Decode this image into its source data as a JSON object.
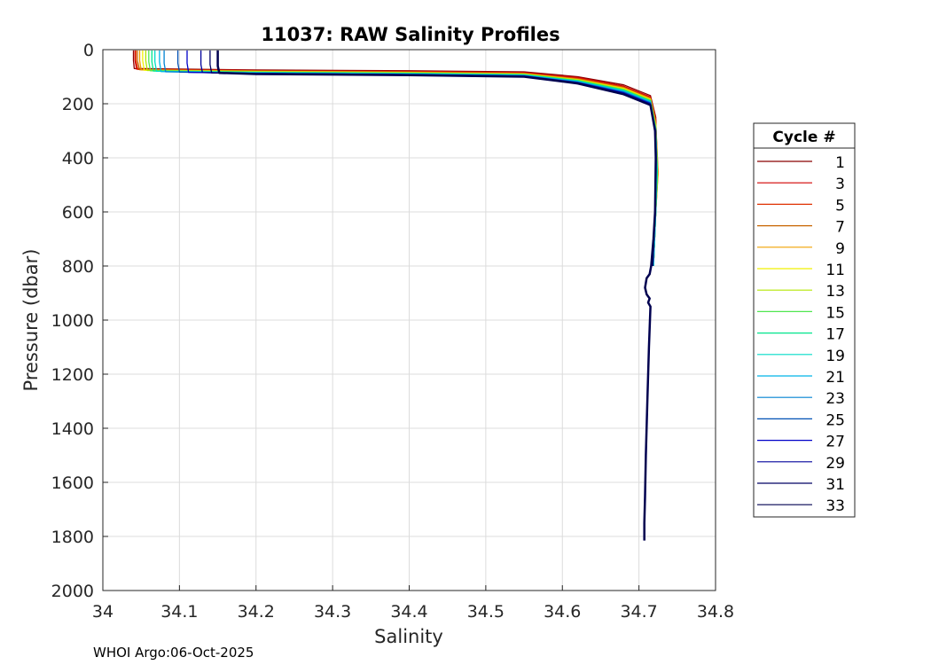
{
  "chart_data": {
    "type": "line",
    "title": "11037: RAW Salinity Profiles",
    "xlabel": "Salinity",
    "ylabel": "Pressure (dbar)",
    "xlim": [
      34,
      34.8
    ],
    "ylim": [
      0,
      2000
    ],
    "y_reversed": true,
    "xticks": [
      "34",
      "34.1",
      "34.2",
      "34.3",
      "34.4",
      "34.5",
      "34.6",
      "34.7",
      "34.8"
    ],
    "yticks": [
      "0",
      "200",
      "400",
      "600",
      "800",
      "1000",
      "1200",
      "1400",
      "1600",
      "1800",
      "2000"
    ],
    "grid": true,
    "legend": {
      "title": "Cycle #",
      "placement": "right",
      "entries": [
        {
          "label": "1",
          "color": "#8b0000"
        },
        {
          "label": "3",
          "color": "#d20000"
        },
        {
          "label": "5",
          "color": "#e03000"
        },
        {
          "label": "7",
          "color": "#c86400"
        },
        {
          "label": "9",
          "color": "#f0a000"
        },
        {
          "label": "11",
          "color": "#f0f000"
        },
        {
          "label": "13",
          "color": "#b4e600"
        },
        {
          "label": "15",
          "color": "#50e650"
        },
        {
          "label": "17",
          "color": "#00e68c"
        },
        {
          "label": "19",
          "color": "#00dcc8"
        },
        {
          "label": "21",
          "color": "#00b4e6"
        },
        {
          "label": "23",
          "color": "#0082d2"
        },
        {
          "label": "25",
          "color": "#0050b4"
        },
        {
          "label": "27",
          "color": "#0000c8"
        },
        {
          "label": "29",
          "color": "#00009b"
        },
        {
          "label": "31",
          "color": "#000064"
        },
        {
          "label": "33",
          "color": "#000050"
        }
      ]
    },
    "series": [
      {
        "name": "1",
        "color": "#8b0000",
        "profile": [
          [
            34.04,
            3
          ],
          [
            34.04,
            40
          ],
          [
            34.041,
            70
          ],
          [
            34.2,
            75
          ],
          [
            34.4,
            78
          ],
          [
            34.55,
            82
          ],
          [
            34.62,
            100
          ],
          [
            34.68,
            130
          ],
          [
            34.715,
            170
          ],
          [
            34.722,
            250
          ],
          [
            34.723,
            420
          ],
          [
            34.721,
            600
          ],
          [
            34.718,
            800
          ]
        ]
      },
      {
        "name": "3",
        "color": "#d20000",
        "profile": [
          [
            34.042,
            3
          ],
          [
            34.042,
            40
          ],
          [
            34.044,
            72
          ],
          [
            34.2,
            77
          ],
          [
            34.4,
            80
          ],
          [
            34.55,
            85
          ],
          [
            34.62,
            103
          ],
          [
            34.68,
            135
          ],
          [
            34.715,
            175
          ],
          [
            34.722,
            260
          ],
          [
            34.724,
            430
          ],
          [
            34.722,
            600
          ],
          [
            34.719,
            800
          ]
        ]
      },
      {
        "name": "5",
        "color": "#e03000",
        "profile": [
          [
            34.043,
            3
          ],
          [
            34.043,
            40
          ],
          [
            34.046,
            73
          ],
          [
            34.2,
            78
          ],
          [
            34.4,
            82
          ],
          [
            34.55,
            87
          ],
          [
            34.62,
            106
          ],
          [
            34.68,
            138
          ],
          [
            34.715,
            178
          ],
          [
            34.722,
            265
          ],
          [
            34.724,
            440
          ],
          [
            34.722,
            600
          ],
          [
            34.719,
            800
          ]
        ]
      },
      {
        "name": "7",
        "color": "#c86400",
        "profile": [
          [
            34.045,
            3
          ],
          [
            34.045,
            40
          ],
          [
            34.048,
            74
          ],
          [
            34.2,
            79
          ],
          [
            34.4,
            83
          ],
          [
            34.55,
            88
          ],
          [
            34.62,
            108
          ],
          [
            34.68,
            140
          ],
          [
            34.715,
            180
          ],
          [
            34.722,
            270
          ],
          [
            34.725,
            450
          ],
          [
            34.722,
            600
          ],
          [
            34.719,
            800
          ]
        ]
      },
      {
        "name": "9",
        "color": "#f0a000",
        "profile": [
          [
            34.048,
            3
          ],
          [
            34.048,
            40
          ],
          [
            34.05,
            75
          ],
          [
            34.2,
            80
          ],
          [
            34.4,
            84
          ],
          [
            34.55,
            89
          ],
          [
            34.62,
            110
          ],
          [
            34.68,
            142
          ],
          [
            34.715,
            182
          ],
          [
            34.722,
            275
          ],
          [
            34.725,
            460
          ],
          [
            34.722,
            600
          ],
          [
            34.719,
            800
          ]
        ]
      },
      {
        "name": "11",
        "color": "#f0f000",
        "profile": [
          [
            34.052,
            3
          ],
          [
            34.052,
            40
          ],
          [
            34.054,
            76
          ],
          [
            34.2,
            81
          ],
          [
            34.4,
            85
          ],
          [
            34.55,
            90
          ],
          [
            34.62,
            111
          ],
          [
            34.68,
            144
          ],
          [
            34.715,
            184
          ],
          [
            34.722,
            280
          ],
          [
            34.724,
            470
          ],
          [
            34.722,
            600
          ],
          [
            34.719,
            800
          ]
        ]
      },
      {
        "name": "13",
        "color": "#b4e600",
        "profile": [
          [
            34.056,
            3
          ],
          [
            34.056,
            40
          ],
          [
            34.058,
            77
          ],
          [
            34.2,
            82
          ],
          [
            34.4,
            86
          ],
          [
            34.55,
            91
          ],
          [
            34.62,
            112
          ],
          [
            34.68,
            146
          ],
          [
            34.715,
            186
          ],
          [
            34.722,
            285
          ],
          [
            34.724,
            470
          ],
          [
            34.722,
            600
          ],
          [
            34.719,
            800
          ]
        ]
      },
      {
        "name": "15",
        "color": "#50e650",
        "profile": [
          [
            34.06,
            3
          ],
          [
            34.06,
            45
          ],
          [
            34.062,
            78
          ],
          [
            34.2,
            83
          ],
          [
            34.4,
            87
          ],
          [
            34.55,
            92
          ],
          [
            34.62,
            114
          ],
          [
            34.68,
            148
          ],
          [
            34.715,
            188
          ],
          [
            34.722,
            290
          ],
          [
            34.724,
            460
          ],
          [
            34.722,
            600
          ],
          [
            34.719,
            800
          ]
        ]
      },
      {
        "name": "17",
        "color": "#00e68c",
        "profile": [
          [
            34.064,
            3
          ],
          [
            34.064,
            45
          ],
          [
            34.066,
            79
          ],
          [
            34.2,
            84
          ],
          [
            34.4,
            88
          ],
          [
            34.55,
            93
          ],
          [
            34.62,
            115
          ],
          [
            34.68,
            150
          ],
          [
            34.715,
            190
          ],
          [
            34.722,
            295
          ],
          [
            34.724,
            450
          ],
          [
            34.722,
            600
          ],
          [
            34.719,
            800
          ]
        ]
      },
      {
        "name": "19",
        "color": "#00dcc8",
        "profile": [
          [
            34.068,
            3
          ],
          [
            34.068,
            45
          ],
          [
            34.07,
            80
          ],
          [
            34.2,
            85
          ],
          [
            34.4,
            89
          ],
          [
            34.55,
            94
          ],
          [
            34.62,
            117
          ],
          [
            34.68,
            152
          ],
          [
            34.715,
            192
          ],
          [
            34.722,
            300
          ],
          [
            34.723,
            440
          ],
          [
            34.722,
            600
          ],
          [
            34.719,
            800
          ]
        ]
      },
      {
        "name": "21",
        "color": "#00b4e6",
        "profile": [
          [
            34.074,
            3
          ],
          [
            34.074,
            45
          ],
          [
            34.076,
            81
          ],
          [
            34.2,
            86
          ],
          [
            34.4,
            90
          ],
          [
            34.55,
            95
          ],
          [
            34.62,
            118
          ],
          [
            34.68,
            154
          ],
          [
            34.715,
            194
          ],
          [
            34.722,
            300
          ],
          [
            34.723,
            430
          ],
          [
            34.722,
            600
          ],
          [
            34.719,
            800
          ]
        ]
      },
      {
        "name": "23",
        "color": "#0082d2",
        "profile": [
          [
            34.08,
            3
          ],
          [
            34.08,
            50
          ],
          [
            34.082,
            82
          ],
          [
            34.2,
            87
          ],
          [
            34.4,
            91
          ],
          [
            34.55,
            96
          ],
          [
            34.62,
            120
          ],
          [
            34.68,
            156
          ],
          [
            34.715,
            196
          ],
          [
            34.722,
            300
          ],
          [
            34.723,
            420
          ],
          [
            34.721,
            600
          ],
          [
            34.718,
            800
          ]
        ]
      },
      {
        "name": "25",
        "color": "#0050b4",
        "profile": [
          [
            34.098,
            3
          ],
          [
            34.098,
            50
          ],
          [
            34.1,
            83
          ],
          [
            34.2,
            88
          ],
          [
            34.4,
            92
          ],
          [
            34.55,
            97
          ],
          [
            34.62,
            121
          ],
          [
            34.68,
            158
          ],
          [
            34.715,
            198
          ],
          [
            34.721,
            300
          ],
          [
            34.722,
            410
          ],
          [
            34.721,
            600
          ],
          [
            34.718,
            800
          ]
        ]
      },
      {
        "name": "27",
        "color": "#0000c8",
        "profile": [
          [
            34.11,
            3
          ],
          [
            34.11,
            50
          ],
          [
            34.112,
            84
          ],
          [
            34.2,
            88
          ],
          [
            34.4,
            92
          ],
          [
            34.55,
            98
          ],
          [
            34.62,
            122
          ],
          [
            34.68,
            160
          ],
          [
            34.715,
            200
          ],
          [
            34.721,
            300
          ],
          [
            34.722,
            400
          ],
          [
            34.721,
            600
          ],
          [
            34.718,
            800
          ]
        ]
      },
      {
        "name": "29",
        "color": "#00009b",
        "profile": [
          [
            34.128,
            3
          ],
          [
            34.128,
            55
          ],
          [
            34.13,
            85
          ],
          [
            34.2,
            89
          ],
          [
            34.4,
            93
          ],
          [
            34.55,
            99
          ],
          [
            34.62,
            123
          ],
          [
            34.68,
            162
          ],
          [
            34.715,
            202
          ],
          [
            34.721,
            300
          ],
          [
            34.722,
            400
          ],
          [
            34.721,
            600
          ],
          [
            34.718,
            800
          ]
        ]
      },
      {
        "name": "31",
        "color": "#000064",
        "profile": [
          [
            34.14,
            3
          ],
          [
            34.14,
            55
          ],
          [
            34.142,
            86
          ],
          [
            34.2,
            89
          ],
          [
            34.4,
            93
          ],
          [
            34.55,
            100
          ],
          [
            34.62,
            124
          ],
          [
            34.68,
            164
          ],
          [
            34.715,
            204
          ],
          [
            34.721,
            300
          ],
          [
            34.722,
            400
          ],
          [
            34.721,
            600
          ],
          [
            34.718,
            800
          ]
        ]
      },
      {
        "name": "33",
        "color": "#000050",
        "profile": [
          [
            34.15,
            3
          ],
          [
            34.15,
            60
          ],
          [
            34.152,
            86
          ],
          [
            34.2,
            90
          ],
          [
            34.4,
            94
          ],
          [
            34.55,
            100
          ],
          [
            34.62,
            125
          ],
          [
            34.68,
            165
          ],
          [
            34.715,
            205
          ],
          [
            34.721,
            300
          ],
          [
            34.722,
            400
          ],
          [
            34.721,
            600
          ],
          [
            34.719,
            700
          ],
          [
            34.716,
            800
          ],
          [
            34.714,
            830
          ],
          [
            34.71,
            845
          ],
          [
            34.708,
            880
          ],
          [
            34.71,
            905
          ],
          [
            34.714,
            920
          ],
          [
            34.712,
            935
          ],
          [
            34.715,
            950
          ],
          [
            34.713,
            1100
          ],
          [
            34.711,
            1300
          ],
          [
            34.709,
            1500
          ],
          [
            34.708,
            1650
          ],
          [
            34.707,
            1750
          ],
          [
            34.707,
            1815
          ]
        ]
      }
    ]
  },
  "footer": {
    "text": "WHOI Argo:06-Oct-2025"
  }
}
